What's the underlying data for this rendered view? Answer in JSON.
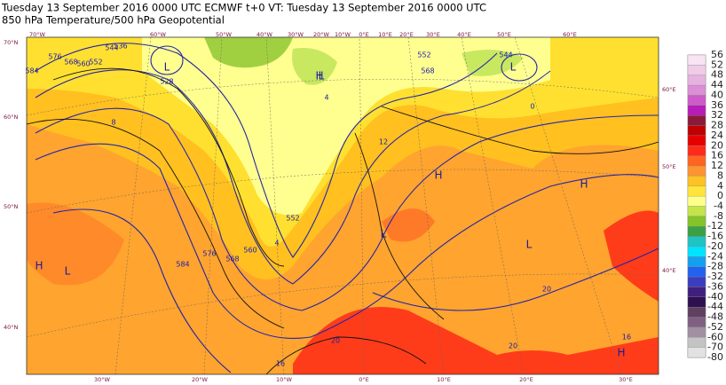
{
  "header": {
    "line1": "Tuesday 13 September 2016 0000 UTC  ECMWF  t+0  VT: Tuesday 13 September 2016 0000 UTC",
    "line2": "850 hPa Temperature/500 hPa Geopotential"
  },
  "map": {
    "top_lon_labels": [
      "70°W",
      "60°W",
      "50°W",
      "40°W",
      "30°W",
      "20°W",
      "10°W",
      "0°E",
      "10°E",
      "20°E",
      "30°E",
      "40°E",
      "50°E",
      "60°E"
    ],
    "bottom_lon_labels": [
      "30°W",
      "20°W",
      "10°W",
      "0°E",
      "10°E",
      "20°E",
      "30°E"
    ],
    "left_lat_labels": [
      "70°N",
      "60°N",
      "50°N",
      "40°N"
    ],
    "right_lon_labels": [
      "60°E",
      "50°E",
      "40°E"
    ],
    "pressure_systems": [
      "L",
      "L",
      "L",
      "H",
      "H",
      "L",
      "L",
      "H",
      "L",
      "H",
      "H"
    ],
    "contour_labels": [
      "528",
      "536",
      "544",
      "552",
      "560",
      "568",
      "576",
      "584",
      "552",
      "560",
      "568",
      "576",
      "584",
      "544",
      "552",
      "568",
      "4",
      "8",
      "12",
      "16",
      "20",
      "20",
      "20",
      "16",
      "4",
      "0"
    ]
  },
  "legend": {
    "labels": [
      56,
      52,
      48,
      44,
      40,
      36,
      32,
      28,
      24,
      20,
      16,
      12,
      8,
      4,
      0,
      -4,
      -8,
      -12,
      -16,
      -20,
      -24,
      -28,
      -32,
      -36,
      -40,
      -44,
      -48,
      -52,
      -60,
      -70,
      -80
    ]
  }
}
